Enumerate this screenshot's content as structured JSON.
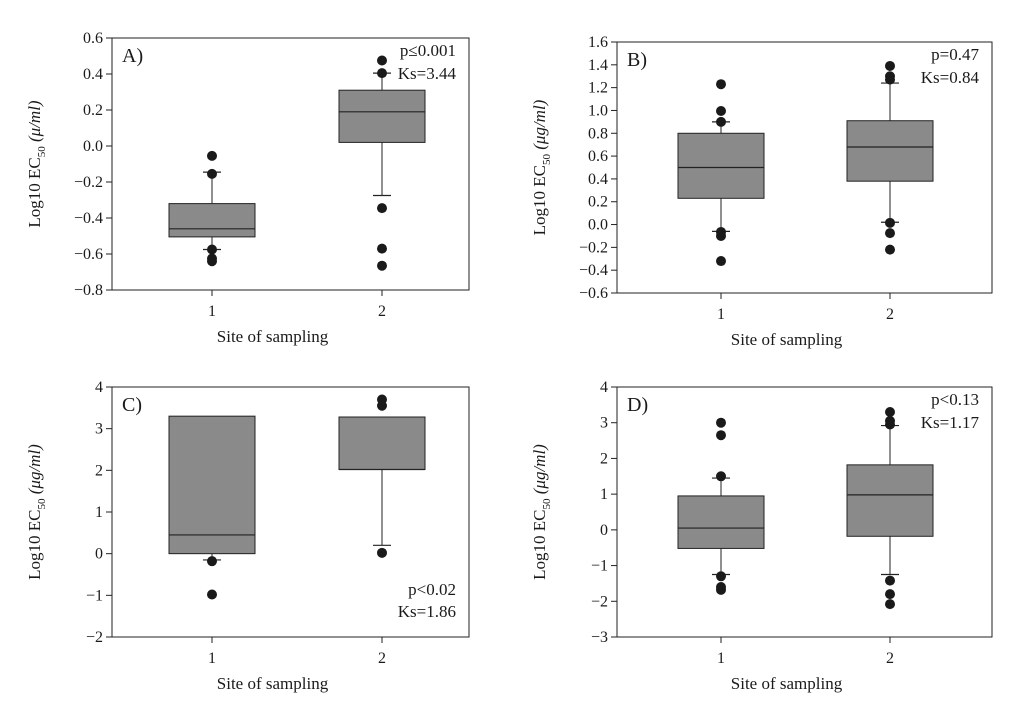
{
  "figure": {
    "xlabel": "Site of sampling",
    "ylabel_prefix": "Log10 EC",
    "ylabel_sub": "50"
  },
  "chart_data": [
    {
      "type": "box",
      "label": "A)",
      "unit": " (μ/ml)",
      "stats": [
        "p≤0.001",
        "Ks=3.44"
      ],
      "stats_position": "top-right",
      "categories": [
        "1",
        "2"
      ],
      "ylim": [
        -0.8,
        0.6
      ],
      "yticks": [
        -0.8,
        -0.6,
        -0.4,
        -0.2,
        0.0,
        0.2,
        0.4,
        0.6
      ],
      "ytick_labels": [
        "−0.8",
        "−0.6",
        "−0.4",
        "−0.2",
        "0.0",
        "0.2",
        "0.4",
        "0.6"
      ],
      "boxes": [
        {
          "q1": -0.505,
          "median": -0.46,
          "q3": -0.32,
          "whisker_low": -0.575,
          "whisker_high": -0.145,
          "outliers": [
            -0.055,
            -0.155,
            -0.575,
            -0.625,
            -0.64
          ]
        },
        {
          "q1": 0.02,
          "median": 0.19,
          "q3": 0.31,
          "whisker_low": -0.275,
          "whisker_high": 0.405,
          "outliers": [
            0.475,
            0.405,
            -0.345,
            -0.57,
            -0.665
          ]
        }
      ]
    },
    {
      "type": "box",
      "label": "B)",
      "unit": " (μg/ml)",
      "stats": [
        "p=0.47",
        "Ks=0.84"
      ],
      "stats_position": "top-right",
      "categories": [
        "1",
        "2"
      ],
      "ylim": [
        -0.6,
        1.6
      ],
      "yticks": [
        -0.6,
        -0.4,
        -0.2,
        0.0,
        0.2,
        0.4,
        0.6,
        0.8,
        1.0,
        1.2,
        1.4,
        1.6
      ],
      "ytick_labels": [
        "−0.6",
        "−0.4",
        "−0.2",
        "0.0",
        "0.2",
        "0.4",
        "0.6",
        "0.8",
        "1.0",
        "1.2",
        "1.4",
        "1.6"
      ],
      "boxes": [
        {
          "q1": 0.23,
          "median": 0.5,
          "q3": 0.8,
          "whisker_low": -0.06,
          "whisker_high": 0.9,
          "outliers": [
            1.23,
            0.995,
            0.9,
            -0.065,
            -0.1,
            -0.32
          ]
        },
        {
          "q1": 0.38,
          "median": 0.68,
          "q3": 0.91,
          "whisker_low": 0.02,
          "whisker_high": 1.24,
          "outliers": [
            1.39,
            1.3,
            1.27,
            0.015,
            -0.075,
            -0.22
          ]
        }
      ]
    },
    {
      "type": "box",
      "label": "C)",
      "unit": " (μg/ml)",
      "stats": [
        "p<0.02",
        "Ks=1.86"
      ],
      "stats_position": "bottom-right",
      "categories": [
        "1",
        "2"
      ],
      "ylim": [
        -2,
        4
      ],
      "yticks": [
        -2,
        -1,
        0,
        1,
        2,
        3,
        4
      ],
      "ytick_labels": [
        "−2",
        "−1",
        "0",
        "1",
        "2",
        "3",
        "4"
      ],
      "boxes": [
        {
          "q1": 0.0,
          "median": 0.45,
          "q3": 3.3,
          "whisker_low": -0.15,
          "whisker_high": 3.3,
          "outliers": [
            -0.18,
            -0.98
          ]
        },
        {
          "q1": 2.02,
          "median": 2.02,
          "q3": 3.28,
          "whisker_low": 0.2,
          "whisker_high": 3.28,
          "outliers": [
            3.7,
            3.55,
            0.02
          ]
        }
      ]
    },
    {
      "type": "box",
      "label": "D)",
      "unit": " (μg/ml)",
      "stats": [
        "p<0.13",
        "Ks=1.17"
      ],
      "stats_position": "top-right",
      "categories": [
        "1",
        "2"
      ],
      "ylim": [
        -3,
        4
      ],
      "yticks": [
        -3,
        -2,
        -1,
        0,
        1,
        2,
        3,
        4
      ],
      "ytick_labels": [
        "−3",
        "−2",
        "−1",
        "0",
        "1",
        "2",
        "3",
        "4"
      ],
      "boxes": [
        {
          "q1": -0.52,
          "median": 0.05,
          "q3": 0.95,
          "whisker_low": -1.25,
          "whisker_high": 1.45,
          "outliers": [
            3.0,
            2.65,
            1.5,
            -1.3,
            -1.6,
            -1.68
          ]
        },
        {
          "q1": -0.18,
          "median": 0.98,
          "q3": 1.82,
          "whisker_low": -1.25,
          "whisker_high": 2.92,
          "outliers": [
            3.3,
            3.05,
            2.95,
            -1.42,
            -1.8,
            -2.08
          ]
        }
      ]
    }
  ]
}
